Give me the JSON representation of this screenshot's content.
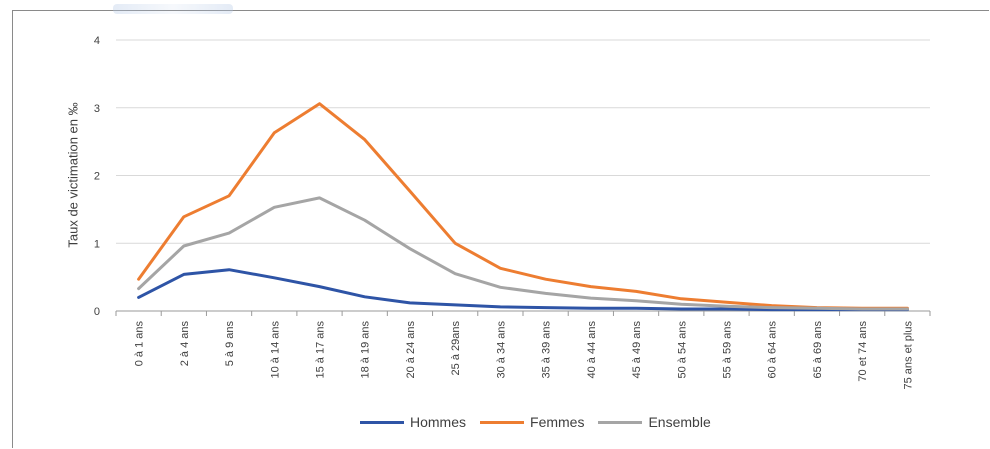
{
  "chart_data": {
    "type": "line",
    "title": "",
    "xlabel": "",
    "ylabel": "Taux de victimation en ‰",
    "ylim": [
      0,
      4
    ],
    "yticks": [
      "0",
      "1",
      "2",
      "3",
      "4"
    ],
    "grid": true,
    "legend_position": "bottom",
    "categories": [
      "0 à 1 ans",
      "2 à 4 ans",
      "5 à 9 ans",
      "10 à 14 ans",
      "15 à 17 ans",
      "18 à 19 ans",
      "20 à 24 ans",
      "25 à 29ans",
      "30 à 34 ans",
      "35 à 39 ans",
      "40 à 44 ans",
      "45 à 49 ans",
      "50 à 54 ans",
      "55 à 59 ans",
      "60 à 64 ans",
      "65 à 69 ans",
      "70 et 74 ans",
      "75 ans et plus"
    ],
    "series": [
      {
        "name": "Hommes",
        "color": "#2e54a6",
        "values": [
          0.2,
          0.54,
          0.61,
          0.49,
          0.36,
          0.21,
          0.12,
          0.09,
          0.06,
          0.05,
          0.04,
          0.04,
          0.03,
          0.03,
          0.02,
          0.02,
          0.02,
          0.02
        ]
      },
      {
        "name": "Femmes",
        "color": "#ed7d31",
        "values": [
          0.47,
          1.39,
          1.7,
          2.63,
          3.06,
          2.53,
          1.77,
          1.0,
          0.63,
          0.47,
          0.36,
          0.29,
          0.18,
          0.13,
          0.08,
          0.05,
          0.04,
          0.04
        ]
      },
      {
        "name": "Ensemble",
        "color": "#a5a5a5",
        "values": [
          0.33,
          0.96,
          1.15,
          1.53,
          1.67,
          1.34,
          0.92,
          0.55,
          0.35,
          0.26,
          0.19,
          0.15,
          0.1,
          0.07,
          0.05,
          0.04,
          0.03,
          0.03
        ]
      }
    ]
  }
}
